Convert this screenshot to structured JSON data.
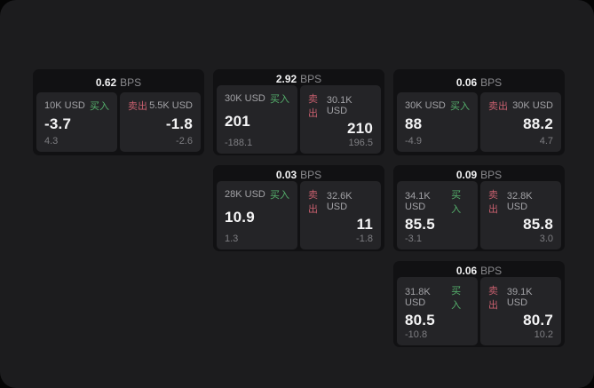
{
  "theme": {
    "page_bg": "#050505",
    "container_bg": "#1c1c1e",
    "card_bg": "#111113",
    "panel_bg": "#242427",
    "text_primary": "#f4f4f5",
    "text_secondary": "#a2a2a6",
    "text_dim": "#7e7e82",
    "buy_color": "#55b06c",
    "sell_color": "#c75f6e"
  },
  "labels": {
    "bps_unit": "BPS",
    "buy": "买入",
    "sell": "卖出"
  },
  "cards": [
    {
      "bps": "0.62",
      "buy": {
        "size": "10K USD",
        "value": "-3.7",
        "delta": "4.3"
      },
      "sell": {
        "size": "5.5K USD",
        "value": "-1.8",
        "delta": "-2.6"
      }
    },
    {
      "bps": "2.92",
      "buy": {
        "size": "30K USD",
        "value": "201",
        "delta": "-188.1"
      },
      "sell": {
        "size": "30.1K USD",
        "value": "210",
        "delta": "196.5"
      }
    },
    {
      "bps": "0.06",
      "buy": {
        "size": "30K USD",
        "value": "88",
        "delta": "-4.9"
      },
      "sell": {
        "size": "30K USD",
        "value": "88.2",
        "delta": "4.7"
      }
    },
    {
      "bps": "0.03",
      "buy": {
        "size": "28K USD",
        "value": "10.9",
        "delta": "1.3"
      },
      "sell": {
        "size": "32.6K USD",
        "value": "11",
        "delta": "-1.8"
      }
    },
    {
      "bps": "0.09",
      "buy": {
        "size": "34.1K USD",
        "value": "85.5",
        "delta": "-3.1"
      },
      "sell": {
        "size": "32.8K USD",
        "value": "85.8",
        "delta": "3.0"
      }
    },
    {
      "bps": "0.06",
      "buy": {
        "size": "31.8K USD",
        "value": "80.5",
        "delta": "-10.8"
      },
      "sell": {
        "size": "39.1K USD",
        "value": "80.7",
        "delta": "10.2"
      }
    }
  ]
}
